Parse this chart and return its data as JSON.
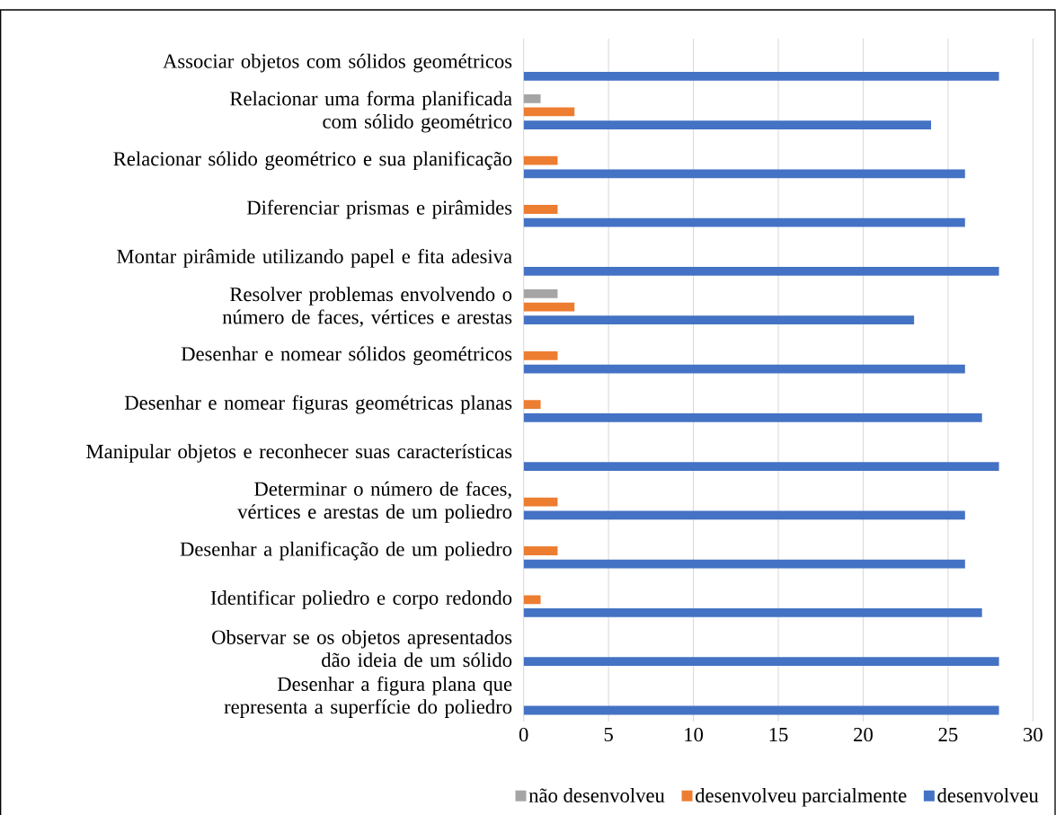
{
  "chart_data": {
    "type": "bar",
    "orientation": "horizontal",
    "categories": [
      "Associar objetos com sólidos geométricos",
      "Relacionar uma forma planificada com sólido geométrico",
      "Relacionar sólido geométrico e sua planificação",
      "Diferenciar prismas e pirâmides",
      "Montar pirâmide utilizando papel e fita adesiva",
      "Resolver problemas envolvendo o número de faces, vértices e arestas",
      "Desenhar e nomear sólidos geométricos",
      "Desenhar e nomear figuras geométricas planas",
      "Manipular objetos e reconhecer suas características",
      "Determinar o número de faces, vértices e arestas de um poliedro",
      "Desenhar a planificação de um poliedro",
      "Identificar poliedro e corpo redondo",
      "Observar se os objetos apresentados dão ideia de um sólido",
      "Desenhar a figura plana que representa a superfície do poliedro"
    ],
    "series": [
      {
        "name": "não desenvolveu",
        "color": "#a5a5a5",
        "values": [
          null,
          1,
          null,
          null,
          null,
          2,
          null,
          null,
          null,
          null,
          null,
          null,
          null,
          null
        ]
      },
      {
        "name": "desenvolveu parcialmente",
        "color": "#ed7d31",
        "values": [
          null,
          3,
          2,
          2,
          null,
          3,
          2,
          1,
          null,
          2,
          2,
          1,
          null,
          null
        ]
      },
      {
        "name": "desenvolveu",
        "color": "#4472c4",
        "values": [
          28,
          24,
          26,
          26,
          28,
          23,
          26,
          27,
          28,
          26,
          26,
          27,
          28,
          28
        ]
      }
    ],
    "xlim": [
      0,
      30
    ],
    "xticks": [
      0,
      5,
      10,
      15,
      20,
      25,
      30
    ],
    "grid": "x",
    "legend": "bottom"
  }
}
